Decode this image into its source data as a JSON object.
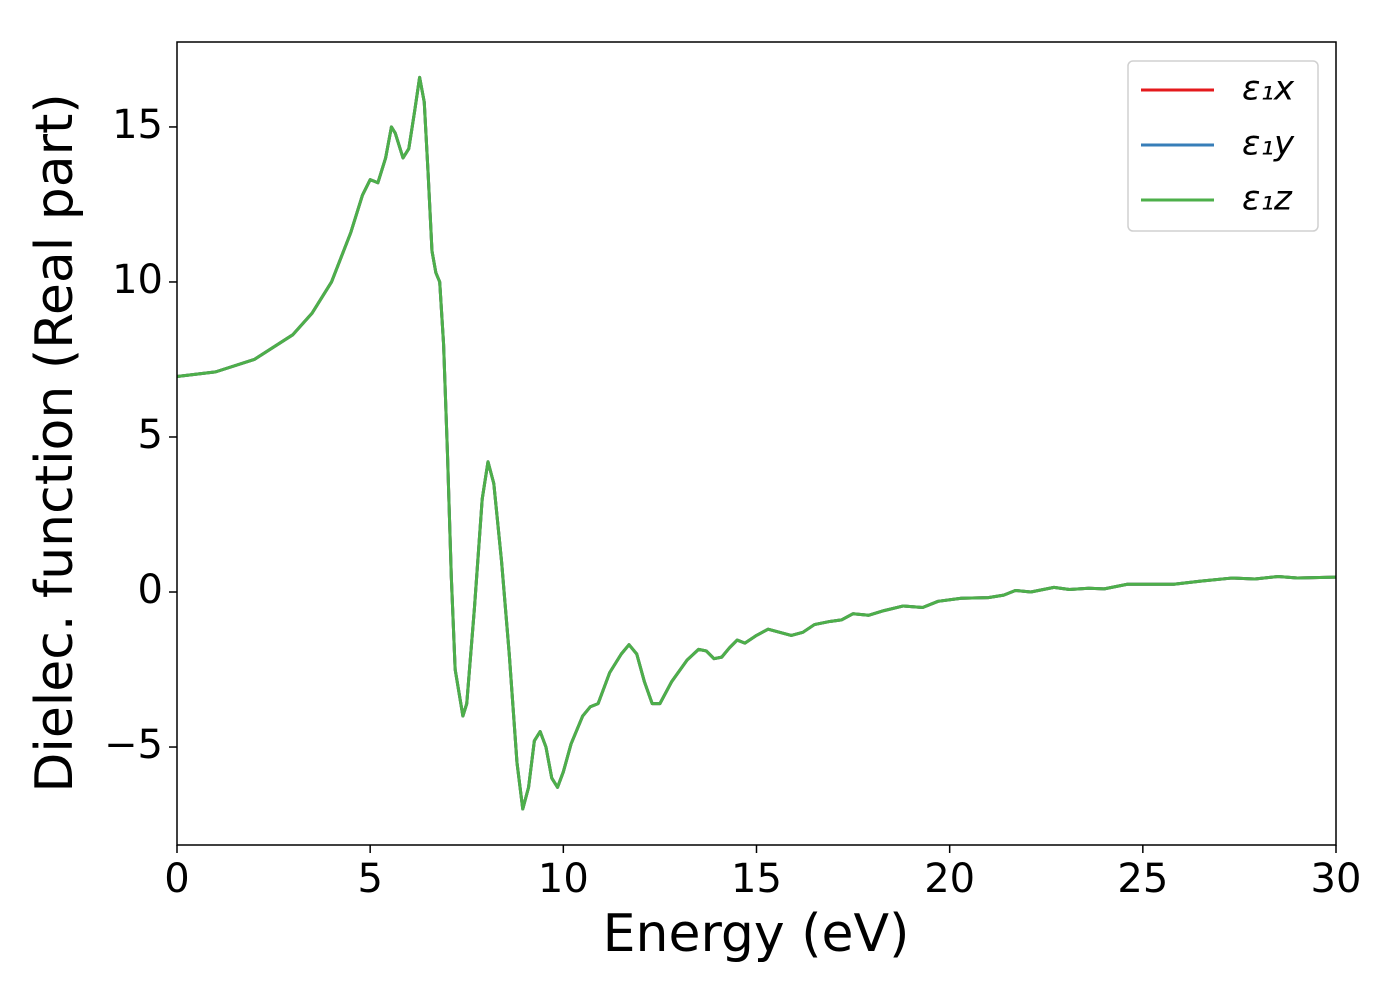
{
  "chart_data": {
    "type": "line",
    "xlabel": "Energy (eV)",
    "ylabel": "Dielec. function (Real part)",
    "x": [
      0,
      1,
      2,
      3,
      3.5,
      4,
      4.5,
      4.8,
      5.0,
      5.2,
      5.4,
      5.55,
      5.65,
      5.85,
      6.0,
      6.15,
      6.28,
      6.4,
      6.5,
      6.6,
      6.7,
      6.8,
      6.9,
      7.0,
      7.1,
      7.2,
      7.4,
      7.5,
      7.7,
      7.9,
      8.05,
      8.2,
      8.4,
      8.6,
      8.8,
      8.95,
      9.1,
      9.25,
      9.4,
      9.55,
      9.7,
      9.85,
      10.0,
      10.2,
      10.5,
      10.7,
      10.9,
      11.2,
      11.5,
      11.7,
      11.9,
      12.1,
      12.3,
      12.5,
      12.8,
      13.2,
      13.5,
      13.7,
      13.9,
      14.1,
      14.3,
      14.5,
      14.7,
      15.0,
      15.3,
      15.6,
      15.9,
      16.2,
      16.5,
      16.9,
      17.2,
      17.5,
      17.9,
      18.3,
      18.8,
      19.3,
      19.7,
      20.3,
      21.0,
      21.4,
      21.7,
      22.1,
      22.7,
      23.1,
      23.6,
      24.0,
      24.6,
      25.3,
      25.8,
      26.5,
      27.3,
      27.9,
      28.5,
      29.0,
      30.0
    ],
    "series": [
      {
        "name": "ε₁x",
        "color": "#e41a1c",
        "values": [
          6.95,
          7.1,
          7.5,
          8.3,
          9.0,
          10.0,
          11.6,
          12.8,
          13.3,
          13.2,
          14.0,
          15.0,
          14.8,
          14.0,
          14.3,
          15.5,
          16.6,
          15.8,
          13.5,
          11,
          10.3,
          10.0,
          8,
          4.5,
          0.5,
          -2.5,
          -4.0,
          -3.6,
          -0.5,
          3.0,
          4.2,
          3.5,
          1,
          -2,
          -5.5,
          -7.0,
          -6.3,
          -4.8,
          -4.5,
          -5.0,
          -6.0,
          -6.3,
          -5.8,
          -4.9,
          -4.0,
          -3.7,
          -3.6,
          -2.6,
          -2.0,
          -1.7,
          -2.0,
          -2.9,
          -3.6,
          -3.6,
          -2.9,
          -2.2,
          -1.85,
          -1.9,
          -2.15,
          -2.1,
          -1.8,
          -1.55,
          -1.65,
          -1.4,
          -1.2,
          -1.3,
          -1.4,
          -1.3,
          -1.05,
          -0.95,
          -0.9,
          -0.7,
          -0.75,
          -0.6,
          -0.45,
          -0.5,
          -0.3,
          -0.2,
          -0.18,
          -0.1,
          0.05,
          0.0,
          0.15,
          0.08,
          0.12,
          0.1,
          0.25,
          0.25,
          0.25,
          0.35,
          0.45,
          0.42,
          0.5,
          0.45,
          0.48
        ]
      },
      {
        "name": "ε₁y",
        "color": "#377eb8",
        "values": [
          6.95,
          7.1,
          7.5,
          8.3,
          9.0,
          10.0,
          11.6,
          12.8,
          13.3,
          13.2,
          14.0,
          15.0,
          14.8,
          14.0,
          14.3,
          15.5,
          16.6,
          15.8,
          13.5,
          11,
          10.3,
          10.0,
          8,
          4.5,
          0.5,
          -2.5,
          -4.0,
          -3.6,
          -0.5,
          3.0,
          4.2,
          3.5,
          1,
          -2,
          -5.5,
          -7.0,
          -6.3,
          -4.8,
          -4.5,
          -5.0,
          -6.0,
          -6.3,
          -5.8,
          -4.9,
          -4.0,
          -3.7,
          -3.6,
          -2.6,
          -2.0,
          -1.7,
          -2.0,
          -2.9,
          -3.6,
          -3.6,
          -2.9,
          -2.2,
          -1.85,
          -1.9,
          -2.15,
          -2.1,
          -1.8,
          -1.55,
          -1.65,
          -1.4,
          -1.2,
          -1.3,
          -1.4,
          -1.3,
          -1.05,
          -0.95,
          -0.9,
          -0.7,
          -0.75,
          -0.6,
          -0.45,
          -0.5,
          -0.3,
          -0.2,
          -0.18,
          -0.1,
          0.05,
          0.0,
          0.15,
          0.08,
          0.12,
          0.1,
          0.25,
          0.25,
          0.25,
          0.35,
          0.45,
          0.42,
          0.5,
          0.45,
          0.48
        ]
      },
      {
        "name": "ε₁z",
        "color": "#4daf4a",
        "values": [
          6.95,
          7.1,
          7.5,
          8.3,
          9.0,
          10.0,
          11.6,
          12.8,
          13.3,
          13.2,
          14.0,
          15.0,
          14.8,
          14.0,
          14.3,
          15.5,
          16.6,
          15.8,
          13.5,
          11,
          10.3,
          10.0,
          8,
          4.5,
          0.5,
          -2.5,
          -4.0,
          -3.6,
          -0.5,
          3.0,
          4.2,
          3.5,
          1,
          -2,
          -5.5,
          -7.0,
          -6.3,
          -4.8,
          -4.5,
          -5.0,
          -6.0,
          -6.3,
          -5.8,
          -4.9,
          -4.0,
          -3.7,
          -3.6,
          -2.6,
          -2.0,
          -1.7,
          -2.0,
          -2.9,
          -3.6,
          -3.6,
          -2.9,
          -2.2,
          -1.85,
          -1.9,
          -2.15,
          -2.1,
          -1.8,
          -1.55,
          -1.65,
          -1.4,
          -1.2,
          -1.3,
          -1.4,
          -1.3,
          -1.05,
          -0.95,
          -0.9,
          -0.7,
          -0.75,
          -0.6,
          -0.45,
          -0.5,
          -0.3,
          -0.2,
          -0.18,
          -0.1,
          0.05,
          0.0,
          0.15,
          0.08,
          0.12,
          0.1,
          0.25,
          0.25,
          0.25,
          0.35,
          0.45,
          0.42,
          0.5,
          0.45,
          0.48
        ]
      }
    ],
    "xlim": [
      0,
      30
    ],
    "xticks": [
      0,
      5,
      10,
      15,
      20,
      25,
      30
    ],
    "ylim": [
      -8.16,
      17.74
    ],
    "yticks": [
      {
        "value": -5,
        "label": "−5"
      },
      0,
      5,
      10,
      15
    ],
    "legend": "upper right"
  }
}
